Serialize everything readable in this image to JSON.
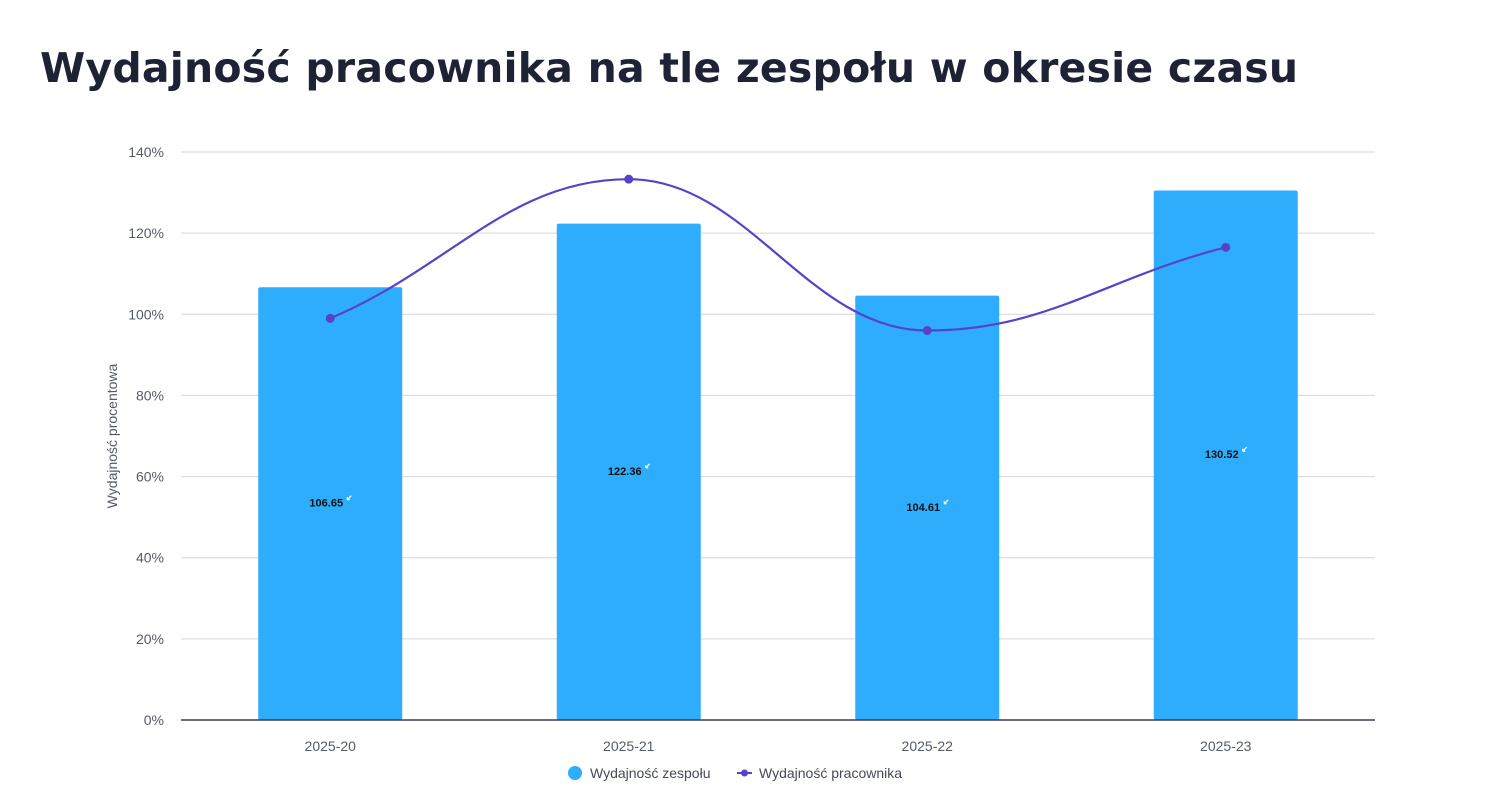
{
  "chart_data": {
    "type": "bar",
    "title": "Wydajność pracownika na tle zespołu w okresie czasu",
    "ylabel": "Wydajność procentowa",
    "xlabel": "",
    "categories": [
      "2025-20",
      "2025-21",
      "2025-22",
      "2025-23"
    ],
    "ylim": [
      0,
      140
    ],
    "yticks": [
      "0%",
      "20%",
      "40%",
      "60%",
      "80%",
      "100%",
      "120%",
      "140%"
    ],
    "grid": true,
    "legend_position": "bottom",
    "series": [
      {
        "name": "Wydajność zespołu",
        "type": "bar",
        "color": "#2eadfd",
        "values": [
          106.65,
          122.36,
          104.61,
          130.52
        ],
        "data_labels": [
          "106.65",
          "122.36",
          "104.61",
          "130.52"
        ]
      },
      {
        "name": "Wydajność pracownika",
        "type": "line",
        "smooth": true,
        "color": "#5843c8",
        "values": [
          99,
          133.3,
          96,
          116.5
        ]
      }
    ]
  }
}
